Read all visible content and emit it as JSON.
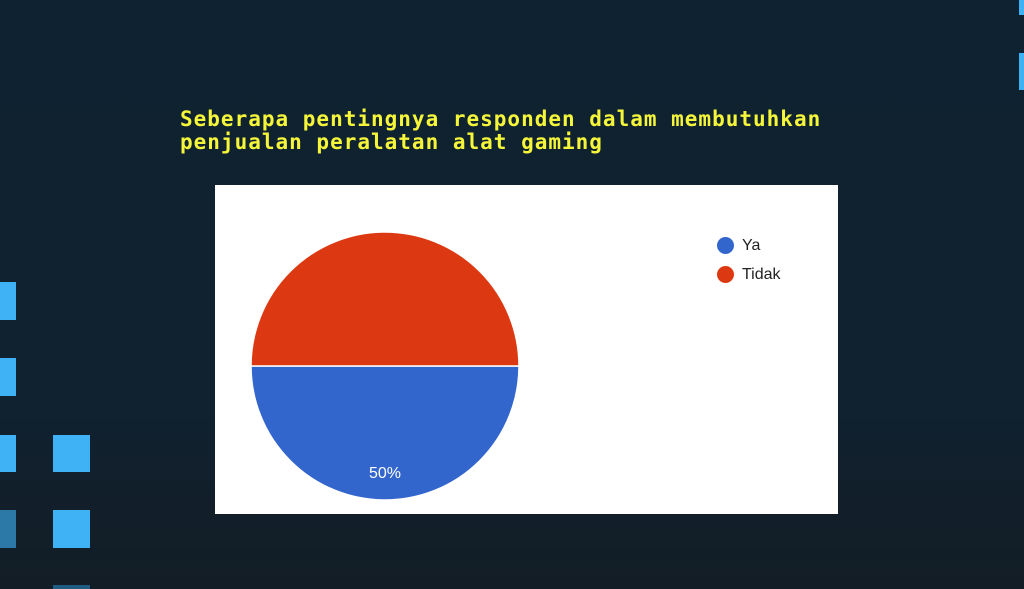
{
  "slide": {
    "title": "Seberapa pentingnya responden dalam membutuhkan penjualan peralatan alat gaming"
  },
  "colors": {
    "background": "#0f2231",
    "title": "#f5f53a",
    "accent_squares": "#3fb2f5",
    "series_ya": "#3366cc",
    "series_tidak": "#dc3912"
  },
  "chart_data": {
    "type": "pie",
    "title": "",
    "slices": [
      {
        "label": "Ya",
        "value": 50,
        "display": "50%",
        "color": "#3366cc"
      },
      {
        "label": "Tidak",
        "value": 50,
        "display": "50%",
        "color": "#dc3912"
      }
    ],
    "legend": {
      "position": "right",
      "items": [
        "Ya",
        "Tidak"
      ]
    }
  }
}
